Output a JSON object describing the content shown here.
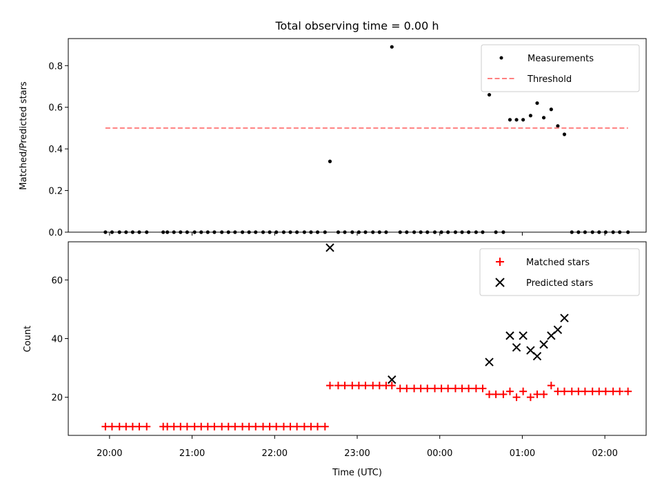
{
  "chart_data": [
    {
      "type": "scatter",
      "title": "Total observing time = 0.00 h",
      "ylabel": "Matched/Predicted stars",
      "ylim": [
        0,
        0.93
      ],
      "yticks": [
        "0.0",
        "0.2",
        "0.4",
        "0.6",
        "0.8"
      ],
      "xlim_hours": [
        19.5,
        26.5
      ],
      "legend_position": "top-right",
      "series": [
        {
          "name": "Measurements",
          "marker": "dot",
          "color": "#000000",
          "points": [
            [
              19.95,
              0
            ],
            [
              20.03,
              0
            ],
            [
              20.12,
              0
            ],
            [
              20.2,
              0
            ],
            [
              20.28,
              0
            ],
            [
              20.36,
              0
            ],
            [
              20.45,
              0
            ],
            [
              20.65,
              0
            ],
            [
              20.7,
              0
            ],
            [
              20.78,
              0
            ],
            [
              20.86,
              0
            ],
            [
              20.94,
              0
            ],
            [
              21.03,
              0
            ],
            [
              21.11,
              0
            ],
            [
              21.19,
              0
            ],
            [
              21.27,
              0
            ],
            [
              21.36,
              0
            ],
            [
              21.44,
              0
            ],
            [
              21.52,
              0
            ],
            [
              21.61,
              0
            ],
            [
              21.69,
              0
            ],
            [
              21.77,
              0
            ],
            [
              21.86,
              0
            ],
            [
              21.94,
              0
            ],
            [
              22.02,
              0
            ],
            [
              22.11,
              0
            ],
            [
              22.19,
              0
            ],
            [
              22.27,
              0
            ],
            [
              22.36,
              0
            ],
            [
              22.44,
              0
            ],
            [
              22.52,
              0
            ],
            [
              22.61,
              0
            ],
            [
              22.67,
              0.34
            ],
            [
              22.77,
              0
            ],
            [
              22.85,
              0
            ],
            [
              22.94,
              0
            ],
            [
              23.02,
              0
            ],
            [
              23.1,
              0
            ],
            [
              23.19,
              0
            ],
            [
              23.27,
              0
            ],
            [
              23.35,
              0
            ],
            [
              23.42,
              0.89
            ],
            [
              23.52,
              0
            ],
            [
              23.6,
              0
            ],
            [
              23.69,
              0
            ],
            [
              23.77,
              0
            ],
            [
              23.85,
              0
            ],
            [
              23.94,
              0
            ],
            [
              24.02,
              0
            ],
            [
              24.1,
              0
            ],
            [
              24.19,
              0
            ],
            [
              24.27,
              0
            ],
            [
              24.35,
              0
            ],
            [
              24.44,
              0
            ],
            [
              24.52,
              0
            ],
            [
              24.6,
              0.66
            ],
            [
              24.68,
              0
            ],
            [
              24.77,
              0
            ],
            [
              24.85,
              0.54
            ],
            [
              24.93,
              0.54
            ],
            [
              25.01,
              0.54
            ],
            [
              25.1,
              0.56
            ],
            [
              25.18,
              0.62
            ],
            [
              25.26,
              0.55
            ],
            [
              25.35,
              0.59
            ],
            [
              25.43,
              0.51
            ],
            [
              25.51,
              0.47
            ],
            [
              25.6,
              0
            ],
            [
              25.68,
              0
            ],
            [
              25.76,
              0
            ],
            [
              25.85,
              0
            ],
            [
              25.93,
              0
            ],
            [
              26.01,
              0
            ],
            [
              26.1,
              0
            ],
            [
              26.18,
              0
            ],
            [
              26.28,
              0
            ]
          ]
        },
        {
          "name": "Threshold",
          "marker": "dashed-line",
          "color": "#ff7f7f",
          "points": [
            [
              19.95,
              0.5
            ],
            [
              26.28,
              0.5
            ]
          ]
        }
      ]
    },
    {
      "type": "scatter",
      "xlabel": "Time (UTC)",
      "ylabel": "Count",
      "ylim": [
        7,
        73
      ],
      "yticks": [
        "20",
        "40",
        "60"
      ],
      "xlim_hours": [
        19.5,
        26.5
      ],
      "xticks": [
        "20:00",
        "21:00",
        "22:00",
        "23:00",
        "00:00",
        "01:00",
        "02:00"
      ],
      "legend_position": "top-right",
      "series": [
        {
          "name": "Matched stars",
          "marker": "plus",
          "color": "#ff0000",
          "points": [
            [
              19.95,
              10
            ],
            [
              20.03,
              10
            ],
            [
              20.12,
              10
            ],
            [
              20.2,
              10
            ],
            [
              20.28,
              10
            ],
            [
              20.36,
              10
            ],
            [
              20.45,
              10
            ],
            [
              20.65,
              10
            ],
            [
              20.7,
              10
            ],
            [
              20.78,
              10
            ],
            [
              20.86,
              10
            ],
            [
              20.94,
              10
            ],
            [
              21.03,
              10
            ],
            [
              21.11,
              10
            ],
            [
              21.19,
              10
            ],
            [
              21.27,
              10
            ],
            [
              21.36,
              10
            ],
            [
              21.44,
              10
            ],
            [
              21.52,
              10
            ],
            [
              21.61,
              10
            ],
            [
              21.69,
              10
            ],
            [
              21.77,
              10
            ],
            [
              21.86,
              10
            ],
            [
              21.94,
              10
            ],
            [
              22.02,
              10
            ],
            [
              22.11,
              10
            ],
            [
              22.19,
              10
            ],
            [
              22.27,
              10
            ],
            [
              22.36,
              10
            ],
            [
              22.44,
              10
            ],
            [
              22.52,
              10
            ],
            [
              22.61,
              10
            ],
            [
              22.67,
              24
            ],
            [
              22.77,
              24
            ],
            [
              22.85,
              24
            ],
            [
              22.94,
              24
            ],
            [
              23.02,
              24
            ],
            [
              23.1,
              24
            ],
            [
              23.19,
              24
            ],
            [
              23.27,
              24
            ],
            [
              23.35,
              24
            ],
            [
              23.42,
              24
            ],
            [
              23.52,
              23
            ],
            [
              23.6,
              23
            ],
            [
              23.69,
              23
            ],
            [
              23.77,
              23
            ],
            [
              23.85,
              23
            ],
            [
              23.94,
              23
            ],
            [
              24.02,
              23
            ],
            [
              24.1,
              23
            ],
            [
              24.19,
              23
            ],
            [
              24.27,
              23
            ],
            [
              24.35,
              23
            ],
            [
              24.44,
              23
            ],
            [
              24.52,
              23
            ],
            [
              24.6,
              21
            ],
            [
              24.68,
              21
            ],
            [
              24.77,
              21
            ],
            [
              24.85,
              22
            ],
            [
              24.93,
              20
            ],
            [
              25.01,
              22
            ],
            [
              25.1,
              20
            ],
            [
              25.18,
              21
            ],
            [
              25.26,
              21
            ],
            [
              25.35,
              24
            ],
            [
              25.43,
              22
            ],
            [
              25.51,
              22
            ],
            [
              25.6,
              22
            ],
            [
              25.68,
              22
            ],
            [
              25.76,
              22
            ],
            [
              25.85,
              22
            ],
            [
              25.93,
              22
            ],
            [
              26.01,
              22
            ],
            [
              26.1,
              22
            ],
            [
              26.18,
              22
            ],
            [
              26.28,
              22
            ]
          ]
        },
        {
          "name": "Predicted stars",
          "marker": "x",
          "color": "#000000",
          "points": [
            [
              22.67,
              71
            ],
            [
              23.42,
              26
            ],
            [
              24.6,
              32
            ],
            [
              24.85,
              41
            ],
            [
              24.93,
              37
            ],
            [
              25.01,
              41
            ],
            [
              25.1,
              36
            ],
            [
              25.18,
              34
            ],
            [
              25.26,
              38
            ],
            [
              25.35,
              41
            ],
            [
              25.43,
              43
            ],
            [
              25.51,
              47
            ]
          ]
        }
      ]
    }
  ]
}
